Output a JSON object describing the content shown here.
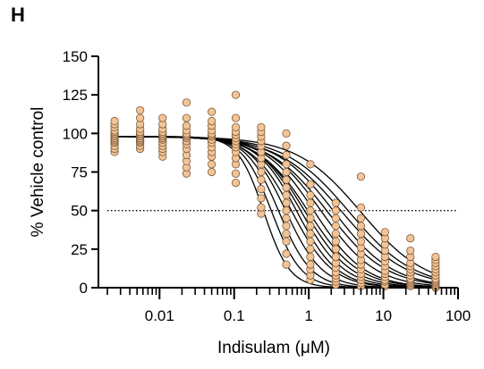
{
  "panel_label": "H",
  "chart_data": {
    "type": "scatter",
    "xlabel": "Indisulam (μM)",
    "ylabel": "% Vehicle control",
    "xscale": "log",
    "xlim": [
      0.002,
      100
    ],
    "ylim": [
      0,
      150
    ],
    "x_tick_labels": [
      {
        "value": 0.01,
        "label": "0.01"
      },
      {
        "value": 0.1,
        "label": "0.1"
      },
      {
        "value": 1,
        "label": "1"
      },
      {
        "value": 10,
        "label": "10"
      },
      {
        "value": 100,
        "label": "100"
      }
    ],
    "y_tick_labels": [
      {
        "value": 0,
        "label": "0"
      },
      {
        "value": 25,
        "label": "25"
      },
      {
        "value": 50,
        "label": "50"
      },
      {
        "value": 75,
        "label": "75"
      },
      {
        "value": 100,
        "label": "100"
      },
      {
        "value": 125,
        "label": "125"
      },
      {
        "value": 150,
        "label": "150"
      }
    ],
    "reference_line": {
      "y": 50,
      "style": "dotted"
    },
    "grid": false,
    "marker_color": "#F2C497",
    "marker_edge_color": "#7A5A3A",
    "curve_color": "#000000",
    "concentrations": [
      0.0025,
      0.0055,
      0.011,
      0.023,
      0.05,
      0.105,
      0.23,
      0.5,
      1.05,
      2.3,
      5,
      10.5,
      23,
      50
    ],
    "points": [
      {
        "x": 0.0025,
        "y": [
          88,
          90,
          92,
          94,
          95,
          96,
          97,
          98,
          99,
          100,
          101,
          102,
          104,
          106,
          108
        ]
      },
      {
        "x": 0.0055,
        "y": [
          90,
          92,
          94,
          95,
          96,
          97,
          98,
          99,
          100,
          101,
          103,
          106,
          110,
          115
        ]
      },
      {
        "x": 0.011,
        "y": [
          85,
          88,
          90,
          92,
          94,
          96,
          97,
          98,
          99,
          100,
          101,
          103,
          106,
          110
        ]
      },
      {
        "x": 0.023,
        "y": [
          74,
          78,
          82,
          86,
          90,
          93,
          95,
          97,
          98,
          99,
          100,
          102,
          105,
          110,
          120
        ]
      },
      {
        "x": 0.05,
        "y": [
          75,
          80,
          85,
          88,
          91,
          94,
          96,
          98,
          99,
          100,
          102,
          105,
          108,
          114
        ]
      },
      {
        "x": 0.105,
        "y": [
          68,
          74,
          80,
          84,
          88,
          91,
          93,
          95,
          97,
          99,
          101,
          104,
          110,
          125
        ]
      },
      {
        "x": 0.23,
        "y": [
          48,
          52,
          58,
          64,
          70,
          75,
          80,
          84,
          88,
          92,
          95,
          98,
          101,
          104
        ]
      },
      {
        "x": 0.5,
        "y": [
          15,
          22,
          30,
          35,
          40,
          45,
          50,
          55,
          60,
          65,
          70,
          75,
          80,
          86,
          92,
          100
        ]
      },
      {
        "x": 1.05,
        "y": [
          5,
          8,
          12,
          15,
          20,
          25,
          30,
          35,
          40,
          45,
          50,
          55,
          60,
          67,
          80
        ]
      },
      {
        "x": 2.3,
        "y": [
          2,
          4,
          6,
          8,
          10,
          13,
          16,
          20,
          25,
          30,
          35,
          40,
          45,
          50,
          55
        ]
      },
      {
        "x": 5,
        "y": [
          1,
          3,
          5,
          7,
          9,
          12,
          15,
          18,
          22,
          26,
          30,
          35,
          40,
          45,
          52,
          72
        ]
      },
      {
        "x": 10.5,
        "y": [
          1,
          2,
          4,
          5,
          7,
          9,
          11,
          14,
          17,
          20,
          24,
          28,
          32,
          36
        ]
      },
      {
        "x": 23,
        "y": [
          1,
          2,
          3,
          4,
          5,
          6,
          8,
          10,
          12,
          14,
          16,
          20,
          24,
          32
        ]
      },
      {
        "x": 50,
        "y": [
          0,
          1,
          2,
          3,
          4,
          5,
          6,
          8,
          10,
          12,
          14,
          16,
          18,
          20
        ]
      }
    ],
    "curves": [
      {
        "ic50": 0.25,
        "hill": 2.5
      },
      {
        "ic50": 0.32,
        "hill": 2.2
      },
      {
        "ic50": 0.4,
        "hill": 2.0
      },
      {
        "ic50": 0.5,
        "hill": 1.8
      },
      {
        "ic50": 0.6,
        "hill": 1.6
      },
      {
        "ic50": 0.7,
        "hill": 1.6
      },
      {
        "ic50": 0.8,
        "hill": 1.5
      },
      {
        "ic50": 0.9,
        "hill": 1.4
      },
      {
        "ic50": 1.0,
        "hill": 1.3
      },
      {
        "ic50": 1.2,
        "hill": 1.3
      },
      {
        "ic50": 1.5,
        "hill": 1.2
      },
      {
        "ic50": 1.8,
        "hill": 1.1
      },
      {
        "ic50": 2.2,
        "hill": 1.1
      },
      {
        "ic50": 2.8,
        "hill": 1.0
      },
      {
        "ic50": 3.5,
        "hill": 1.0
      },
      {
        "ic50": 5.0,
        "hill": 1.0
      }
    ]
  }
}
